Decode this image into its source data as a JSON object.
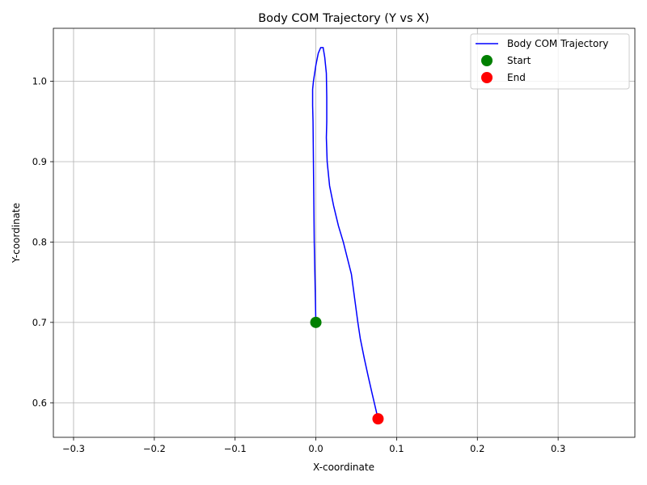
{
  "chart_data": {
    "type": "line",
    "title": "Body COM Trajectory (Y vs X)",
    "xlabel": "X-coordinate",
    "ylabel": "Y-coordinate",
    "xlim": [
      -0.325,
      0.395
    ],
    "ylim": [
      0.557,
      1.066
    ],
    "x_ticks": [
      -0.3,
      -0.2,
      -0.1,
      0.0,
      0.1,
      0.2,
      0.3
    ],
    "x_tick_labels": [
      "−0.3",
      "−0.2",
      "−0.1",
      "0.0",
      "0.1",
      "0.2",
      "0.3"
    ],
    "y_ticks": [
      0.6,
      0.7,
      0.8,
      0.9,
      1.0
    ],
    "y_tick_labels": [
      "0.6",
      "0.7",
      "0.8",
      "0.9",
      "1.0"
    ],
    "grid": true,
    "legend_position": "top-right",
    "series": [
      {
        "name": "Body COM Trajectory",
        "color": "#0000ff",
        "x": [
          0.0,
          -0.001,
          -0.002,
          -0.0025,
          -0.003,
          -0.0035,
          -0.004,
          -0.004,
          -0.003,
          0.0,
          0.003,
          0.006,
          0.009,
          0.011,
          0.013,
          0.0135,
          0.0135,
          0.013,
          0.014,
          0.017,
          0.022,
          0.028,
          0.034,
          0.039,
          0.044,
          0.048,
          0.052,
          0.055,
          0.06,
          0.065,
          0.07,
          0.077
        ],
        "y": [
          0.7,
          0.75,
          0.8,
          0.85,
          0.9,
          0.95,
          0.97,
          0.99,
          1.0,
          1.02,
          1.035,
          1.042,
          1.042,
          1.03,
          1.01,
          0.98,
          0.95,
          0.93,
          0.9,
          0.87,
          0.845,
          0.82,
          0.8,
          0.78,
          0.76,
          0.73,
          0.7,
          0.68,
          0.655,
          0.632,
          0.61,
          0.58
        ]
      },
      {
        "name": "Start",
        "marker": "circle",
        "color": "#008000",
        "x": [
          0.0
        ],
        "y": [
          0.7
        ]
      },
      {
        "name": "End",
        "marker": "circle",
        "color": "#ff0000",
        "x": [
          0.077
        ],
        "y": [
          0.58
        ]
      }
    ]
  }
}
